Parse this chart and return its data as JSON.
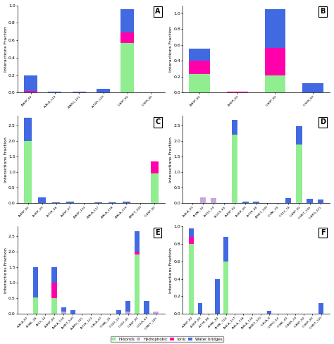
{
  "colors": {
    "hbonds": "#90EE90",
    "hydrophobic": "#C8A8D8",
    "ionic": "#FF00AA",
    "water": "#4169E1"
  },
  "panel_A": {
    "label": "A",
    "categories": [
      "A:ASP_82",
      "A:ALA_119",
      "A:ARG_121",
      "A:THR_123",
      "C:ASP_82",
      "C:SER_85"
    ],
    "hbonds": [
      0.0,
      0.0,
      0.0,
      0.0,
      0.57,
      0.0
    ],
    "hydrophobic": [
      0.0,
      0.0,
      0.0,
      0.0,
      0.0,
      0.0
    ],
    "ionic": [
      0.02,
      0.0,
      0.0,
      0.0,
      0.12,
      0.0
    ],
    "water": [
      0.18,
      0.01,
      0.01,
      0.04,
      0.27,
      0.0
    ],
    "ylim": [
      0,
      1.0
    ],
    "yticks": [
      0.0,
      0.2,
      0.4,
      0.6,
      0.8,
      1.0
    ],
    "ylabel": "Interactions Fraction"
  },
  "panel_B": {
    "label": "B",
    "categories": [
      "A:ASP_82",
      "A:SER_83",
      "C:ASP_82",
      "C:SER_83"
    ],
    "hbonds": [
      0.23,
      0.0,
      0.22,
      0.0
    ],
    "hydrophobic": [
      0.0,
      0.0,
      0.0,
      0.0
    ],
    "ionic": [
      0.17,
      0.01,
      0.34,
      0.0
    ],
    "water": [
      0.15,
      0.0,
      0.49,
      0.12
    ],
    "ylim": [
      0,
      1.1
    ],
    "yticks": [
      0.0,
      0.2,
      0.4,
      0.6,
      0.8,
      1.0
    ],
    "ylabel": "Interactions Fraction"
  },
  "panel_C": {
    "label": "C",
    "categories": [
      "A:ASP_82",
      "A:SER_83",
      "A:TYR_86",
      "A:ASP_87",
      "A:ASP_110",
      "A:ALA_117",
      "A:ALA_118",
      "A:ALA_119",
      "A:MET_120",
      "C:ASP_82"
    ],
    "hbonds": [
      2.0,
      0.0,
      0.0,
      0.0,
      0.0,
      0.0,
      0.0,
      0.0,
      0.0,
      0.95
    ],
    "hydrophobic": [
      0.0,
      0.0,
      0.0,
      0.0,
      0.0,
      0.0,
      0.0,
      0.0,
      0.0,
      0.0
    ],
    "ionic": [
      0.0,
      0.0,
      0.0,
      0.0,
      0.0,
      0.0,
      0.0,
      0.0,
      0.0,
      0.38
    ],
    "water": [
      0.75,
      0.18,
      0.02,
      0.06,
      0.0,
      0.02,
      0.02,
      0.05,
      0.0,
      0.0
    ],
    "ylim": [
      0,
      2.8
    ],
    "yticks": [
      0.0,
      0.5,
      1.0,
      1.5,
      2.0,
      2.5
    ],
    "ylabel": "Interactions Fraction"
  },
  "panel_D": {
    "label": "D",
    "categories": [
      "A:ALA_81",
      "A:VAL_20",
      "A:S12_34",
      "A:GCS_65",
      "A:ASP_82",
      "A:SER_83",
      "A:TYR_86",
      "A:MET_120",
      "C:VAL_20",
      "C:S13_74",
      "C:ASP_82",
      "C:MET_120",
      "C:ARG_121"
    ],
    "hbonds": [
      0.0,
      0.0,
      0.0,
      0.0,
      2.2,
      0.0,
      0.0,
      0.0,
      0.0,
      0.0,
      1.88,
      0.0,
      0.0
    ],
    "hydrophobic": [
      0.0,
      0.18,
      0.17,
      0.0,
      0.0,
      0.0,
      0.0,
      0.0,
      0.0,
      0.0,
      0.0,
      0.0,
      0.0
    ],
    "ionic": [
      0.0,
      0.0,
      0.0,
      0.0,
      0.0,
      0.0,
      0.0,
      0.0,
      0.0,
      0.0,
      0.0,
      0.0,
      0.0
    ],
    "water": [
      0.0,
      0.0,
      0.0,
      0.0,
      0.48,
      0.04,
      0.04,
      0.0,
      0.0,
      0.17,
      0.58,
      0.15,
      0.12
    ],
    "ylim": [
      0,
      2.8
    ],
    "yticks": [
      0.0,
      0.5,
      1.0,
      1.5,
      2.0,
      2.5
    ],
    "ylabel": "Interactions Fraction"
  },
  "panel_E": {
    "label": "E",
    "categories": [
      "A:ALA_87",
      "A:VAL_28",
      "A:ILS_14",
      "A:ASP_83",
      "A:ALA_519",
      "A:MET_520",
      "A:ARG_101",
      "A:TYR_122",
      "C:ALA_67",
      "C:VAL_26",
      "C:GLY_14",
      "C:GLY_41",
      "C:ASP_83",
      "C:GLN_63",
      "C:MET_105"
    ],
    "hbonds": [
      0.0,
      0.52,
      0.0,
      0.5,
      0.0,
      0.0,
      0.0,
      0.0,
      0.0,
      0.0,
      0.0,
      0.0,
      1.9,
      0.0,
      0.0
    ],
    "hydrophobic": [
      0.0,
      0.0,
      0.0,
      0.0,
      0.08,
      0.0,
      0.0,
      0.0,
      0.0,
      0.0,
      0.0,
      0.07,
      0.0,
      0.0,
      0.07
    ],
    "ionic": [
      0.0,
      0.0,
      0.0,
      0.5,
      0.0,
      0.0,
      0.0,
      0.0,
      0.0,
      0.0,
      0.0,
      0.0,
      0.1,
      0.0,
      0.0
    ],
    "water": [
      0.0,
      0.97,
      0.0,
      0.5,
      0.12,
      0.12,
      0.0,
      0.0,
      0.0,
      0.0,
      0.12,
      0.33,
      0.65,
      0.4,
      0.0
    ],
    "ylim": [
      0,
      2.8
    ],
    "yticks": [
      0.0,
      0.5,
      1.0,
      1.5,
      2.0,
      2.5
    ],
    "ylabel": "Interactions Fraction"
  },
  "panel_F": {
    "label": "F",
    "categories": [
      "A:ASP_82",
      "A:SER_83",
      "A:TYR_86",
      "A:VAL_90",
      "A:VAL_114",
      "A:ALA_117",
      "A:ALA_118",
      "A:ALA_119",
      "A:MET_120",
      "C:ALA_8",
      "C:PRO_54",
      "C:VAL_43",
      "C:ASN_24",
      "C:ASP_82",
      "C:SER_83",
      "C:MET_120"
    ],
    "hbonds": [
      0.8,
      0.0,
      0.0,
      0.0,
      0.6,
      0.0,
      0.0,
      0.0,
      0.0,
      0.0,
      0.0,
      0.0,
      0.0,
      0.0,
      0.0,
      0.0
    ],
    "hydrophobic": [
      0.0,
      0.0,
      0.0,
      0.0,
      0.0,
      0.0,
      0.0,
      0.0,
      0.0,
      0.0,
      0.0,
      0.0,
      0.0,
      0.0,
      0.0,
      0.0
    ],
    "ionic": [
      0.08,
      0.0,
      0.0,
      0.0,
      0.0,
      0.0,
      0.0,
      0.0,
      0.0,
      0.0,
      0.0,
      0.0,
      0.0,
      0.0,
      0.0,
      0.0
    ],
    "water": [
      0.1,
      0.12,
      0.0,
      0.4,
      0.28,
      0.0,
      0.0,
      0.0,
      0.0,
      0.03,
      0.0,
      0.0,
      0.0,
      0.0,
      0.0,
      0.12
    ],
    "ylim": [
      0,
      1.0
    ],
    "yticks": [
      0.0,
      0.2,
      0.4,
      0.6,
      0.8,
      1.0
    ],
    "ylabel": "Interactions Fraction"
  }
}
